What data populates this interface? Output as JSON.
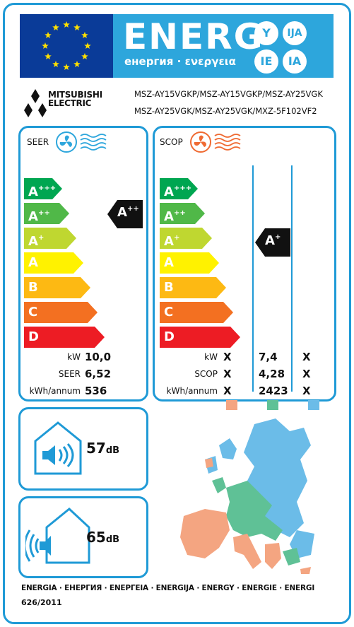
{
  "header": {
    "energ_word": "ENERG",
    "energ_subtitle": "енергия · ενεργεια",
    "lang_circles": [
      "Y",
      "IJA",
      "IE",
      "IA"
    ],
    "flag_colors": {
      "background": "#0a3b98",
      "stars": "#ffe000"
    },
    "banner_color": "#2da6dc"
  },
  "brand": {
    "logo_icon": "mitsubishi-three-diamonds",
    "name_line1": "MITSUBISHI",
    "name_line2": "ELECTRIC"
  },
  "models": {
    "line1": "MSZ-AY15VGKP/MSZ-AY15VGKP/MSZ-AY25VGK",
    "line2": "MSZ-AY25VGK/MSZ-AY25VGK/MXZ-5F102VF2"
  },
  "classes": [
    {
      "label": "A",
      "sup": "+++",
      "color": "#00a651"
    },
    {
      "label": "A",
      "sup": "++",
      "color": "#50b848"
    },
    {
      "label": "A",
      "sup": "+",
      "color": "#bfd730"
    },
    {
      "label": "A",
      "sup": "",
      "color": "#fff200"
    },
    {
      "label": "B",
      "sup": "",
      "color": "#fdb913"
    },
    {
      "label": "C",
      "sup": "",
      "color": "#f37021"
    },
    {
      "label": "D",
      "sup": "",
      "color": "#ed1c24"
    }
  ],
  "cooling": {
    "title": "SEER",
    "icon": "fan-cold-icon",
    "rating": {
      "label": "A",
      "sup": "++"
    },
    "rows": [
      {
        "label": "kW",
        "value": "10,0"
      },
      {
        "label": "SEER",
        "value": "6,52"
      },
      {
        "label": "kWh/annum",
        "value": "536"
      }
    ]
  },
  "heating": {
    "title": "SCOP",
    "icon": "fan-heat-icon",
    "rating": {
      "label": "A",
      "sup": "+"
    },
    "columns": [
      {
        "kw": "X",
        "scop": "X",
        "kwh": "X",
        "color": "#f4a581"
      },
      {
        "kw": "7,4",
        "scop": "4,28",
        "kwh": "2423",
        "color": "#5fc196"
      },
      {
        "kw": "X",
        "scop": "X",
        "kwh": "X",
        "color": "#6bbce8"
      }
    ],
    "row_labels": [
      "kW",
      "SCOP",
      "kWh/annum"
    ]
  },
  "noise": {
    "indoor": {
      "value": "57",
      "unit": "dB",
      "icon": "indoor-speaker-icon"
    },
    "outdoor": {
      "value": "65",
      "unit": "dB",
      "icon": "outdoor-speaker-icon"
    }
  },
  "footer": {
    "languages": "ENERGIA · ЕНЕРГИЯ · ΕΝΕΡΓΕΙΑ · ENERGIJA · ENERGY · ENERGIE · ENERGI",
    "regulation": "626/2011"
  }
}
